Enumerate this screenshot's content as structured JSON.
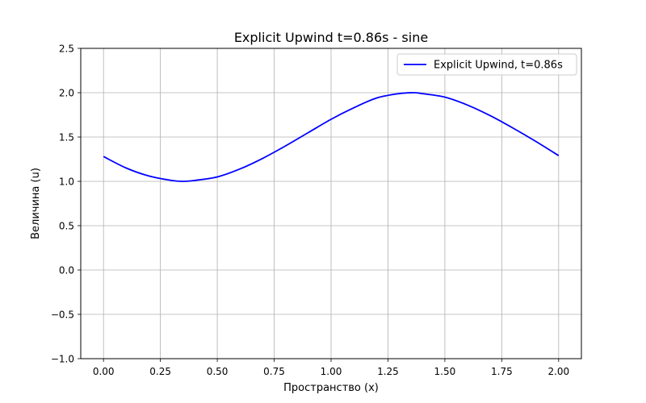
{
  "chart_data": {
    "type": "line",
    "title": "Explicit Upwind t=0.86s - sine",
    "xlabel": "Пространство (x)",
    "ylabel": "Величина (u)",
    "xlim": [
      -0.1,
      2.1
    ],
    "ylim": [
      -1.0,
      2.5
    ],
    "x_ticks": [
      0.0,
      0.25,
      0.5,
      0.75,
      1.0,
      1.25,
      1.5,
      1.75,
      2.0
    ],
    "x_tick_labels": [
      "0.00",
      "0.25",
      "0.50",
      "0.75",
      "1.00",
      "1.25",
      "1.50",
      "1.75",
      "2.00"
    ],
    "y_ticks": [
      -1.0,
      -0.5,
      0.0,
      0.5,
      1.0,
      1.5,
      2.0,
      2.5
    ],
    "y_tick_labels": [
      "−1.0",
      "−0.5",
      "0.0",
      "0.5",
      "1.0",
      "1.5",
      "2.0",
      "2.5"
    ],
    "grid": true,
    "legend_position": "top-right",
    "series": [
      {
        "name": "Explicit Upwind, t=0.86s",
        "color": "#0000ff",
        "x": [
          0.0,
          0.1,
          0.2,
          0.3,
          0.35,
          0.4,
          0.5,
          0.6,
          0.7,
          0.8,
          0.9,
          1.0,
          1.1,
          1.2,
          1.3,
          1.365,
          1.4,
          1.5,
          1.6,
          1.7,
          1.8,
          1.9,
          2.0
        ],
        "y": [
          1.28,
          1.15,
          1.06,
          1.01,
          1.0,
          1.01,
          1.05,
          1.14,
          1.26,
          1.4,
          1.55,
          1.7,
          1.83,
          1.94,
          1.99,
          2.0,
          1.99,
          1.95,
          1.86,
          1.74,
          1.6,
          1.45,
          1.29
        ]
      }
    ]
  }
}
